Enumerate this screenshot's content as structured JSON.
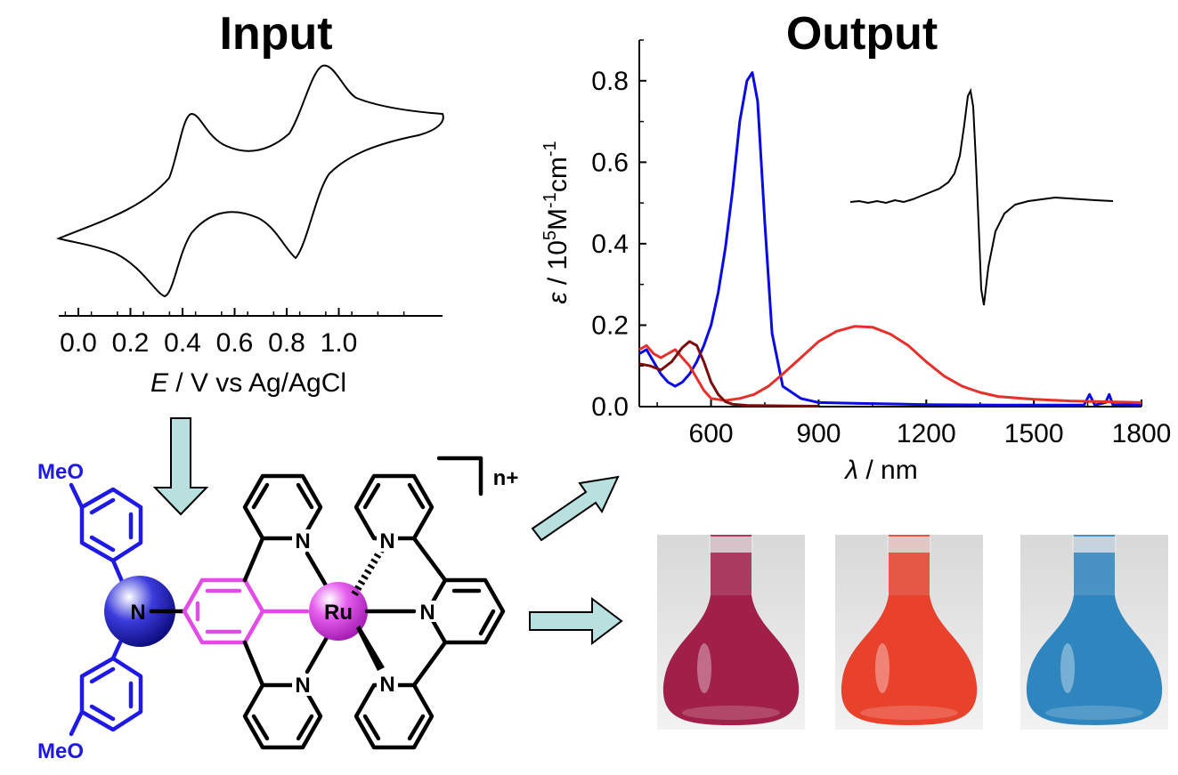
{
  "panels": {
    "input_title": "Input",
    "output_title": "Output"
  },
  "cv_plot": {
    "xlabel_italic": "E",
    "xlabel_rest": " / V vs Ag/AgCl",
    "x_ticks": [
      "0.0",
      "0.2",
      "0.4",
      "0.6",
      "0.8",
      "1.0"
    ]
  },
  "molecule": {
    "charge": "n+",
    "methoxy_top": "MeO",
    "methoxy_bottom": "MeO",
    "amine_n": "N",
    "metal": "Ru",
    "pyridine_n": "N",
    "colors": {
      "amine": "#1f19e6",
      "bridge": "#e34be6",
      "metal_sphere": "#d93ce6",
      "bonds": "#000000"
    }
  },
  "photos": {
    "flasks": [
      {
        "color": "#a0204a"
      },
      {
        "color": "#e8412c"
      },
      {
        "color": "#2f86bf"
      }
    ]
  },
  "arrows": {
    "fill": "#b7e0df"
  },
  "chart_data": {
    "type": "line",
    "xlabel_italic": "λ",
    "xlabel_rest": " / nm",
    "ylabel_italic": "ε",
    "ylabel_rest": " / 10",
    "ylabel_sup1": "5",
    "ylabel_mid": "M",
    "ylabel_sup2": "-1",
    "ylabel_mid2": "cm",
    "ylabel_sup3": "-1",
    "xlim": [
      400,
      1800
    ],
    "ylim": [
      0,
      0.9
    ],
    "x_ticks": [
      "600",
      "900",
      "1200",
      "1500",
      "1800"
    ],
    "y_ticks": [
      "0.0",
      "0.2",
      "0.4",
      "0.6",
      "0.8"
    ],
    "series": [
      {
        "color": "#0a0ae6",
        "x": [
          400,
          420,
          440,
          460,
          480,
          500,
          520,
          540,
          560,
          580,
          600,
          620,
          640,
          660,
          680,
          700,
          715,
          730,
          750,
          770,
          800,
          850,
          900,
          1000,
          1200,
          1400,
          1640,
          1655,
          1670,
          1700,
          1710,
          1720,
          1800
        ],
        "y": [
          0.13,
          0.14,
          0.11,
          0.08,
          0.06,
          0.05,
          0.06,
          0.08,
          0.11,
          0.15,
          0.2,
          0.28,
          0.39,
          0.53,
          0.7,
          0.8,
          0.82,
          0.75,
          0.45,
          0.18,
          0.05,
          0.02,
          0.01,
          0.008,
          0.005,
          0.004,
          0.004,
          0.03,
          0.004,
          0.01,
          0.03,
          0.005,
          0.004
        ]
      },
      {
        "color": "#e6302c",
        "x": [
          400,
          420,
          440,
          460,
          480,
          500,
          520,
          540,
          560,
          580,
          600,
          640,
          680,
          720,
          760,
          800,
          850,
          900,
          950,
          1000,
          1050,
          1100,
          1150,
          1200,
          1250,
          1300,
          1350,
          1400,
          1500,
          1600,
          1700,
          1800
        ],
        "y": [
          0.14,
          0.15,
          0.13,
          0.12,
          0.13,
          0.14,
          0.12,
          0.1,
          0.07,
          0.04,
          0.02,
          0.015,
          0.02,
          0.03,
          0.05,
          0.08,
          0.12,
          0.16,
          0.185,
          0.197,
          0.195,
          0.178,
          0.15,
          0.11,
          0.075,
          0.05,
          0.035,
          0.025,
          0.018,
          0.014,
          0.012,
          0.01
        ]
      },
      {
        "color": "#7a0d0d",
        "x": [
          400,
          430,
          460,
          490,
          520,
          540,
          560,
          580,
          600,
          620,
          640,
          660,
          700,
          800,
          900
        ],
        "y": [
          0.105,
          0.1,
          0.09,
          0.11,
          0.145,
          0.16,
          0.15,
          0.11,
          0.06,
          0.03,
          0.012,
          0.006,
          0.003,
          0.002,
          0.001
        ]
      }
    ],
    "inset_epr": {
      "color": "#000000"
    }
  }
}
